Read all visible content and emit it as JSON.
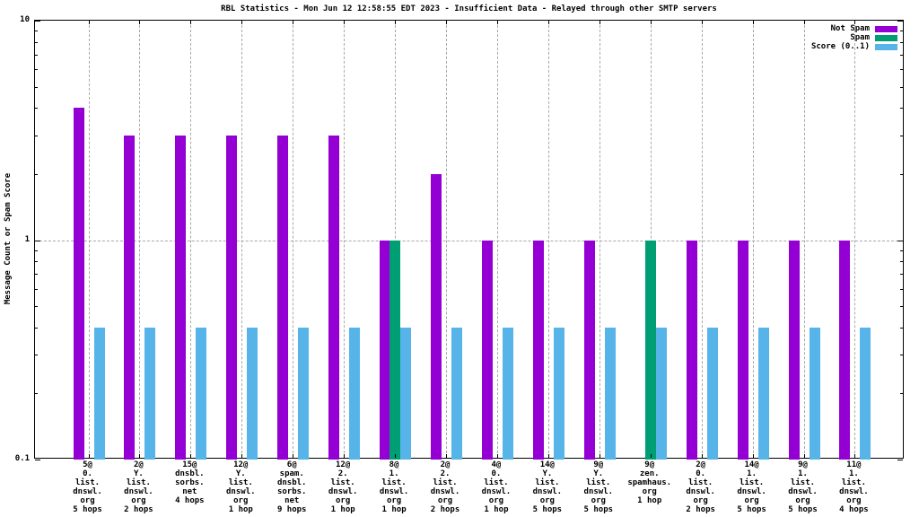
{
  "chart_data": {
    "type": "bar",
    "title": "RBL Statistics - Mon Jun 12 12:58:55 EDT 2023 - Insufficient Data - Relayed through other SMTP servers",
    "ylabel": "Message Count or Spam Score",
    "xlabel": "",
    "yscale": "log",
    "ylim": [
      0.1,
      10
    ],
    "yticks": [
      0.1,
      1,
      10
    ],
    "ytick_labels": [
      "0.1",
      "1",
      "10"
    ],
    "grid": "vertical dashed gridline per category, horizontal dashed line at y=1",
    "legend_position": "top-right-inside",
    "categories": [
      [
        "5@",
        "0.",
        "list.",
        "dnswl.",
        "org",
        "5 hops"
      ],
      [
        "2@",
        "Y.",
        "list.",
        "dnswl.",
        "org",
        "2 hops"
      ],
      [
        "15@",
        "dnsbl.",
        "sorbs.",
        "net",
        "4 hops"
      ],
      [
        "12@",
        "Y.",
        "list.",
        "dnswl.",
        "org",
        "1 hop"
      ],
      [
        "6@",
        "spam.",
        "dnsbl.",
        "sorbs.",
        "net",
        "9 hops"
      ],
      [
        "12@",
        "2.",
        "list.",
        "dnswl.",
        "org",
        "1 hop"
      ],
      [
        "8@",
        "1.",
        "list.",
        "dnswl.",
        "org",
        "1 hop"
      ],
      [
        "2@",
        "2.",
        "list.",
        "dnswl.",
        "org",
        "2 hops"
      ],
      [
        "4@",
        "0.",
        "list.",
        "dnswl.",
        "org",
        "1 hop"
      ],
      [
        "14@",
        "Y.",
        "list.",
        "dnswl.",
        "org",
        "5 hops"
      ],
      [
        "9@",
        "Y.",
        "list.",
        "dnswl.",
        "org",
        "5 hops"
      ],
      [
        "9@",
        "zen.",
        "spamhaus.",
        "org",
        "1 hop"
      ],
      [
        "2@",
        "0.",
        "list.",
        "dnswl.",
        "org",
        "2 hops"
      ],
      [
        "14@",
        "1.",
        "list.",
        "dnswl.",
        "org",
        "5 hops"
      ],
      [
        "9@",
        "1.",
        "list.",
        "dnswl.",
        "org",
        "5 hops"
      ],
      [
        "11@",
        "1.",
        "list.",
        "dnswl.",
        "org",
        "4 hops"
      ]
    ],
    "series": [
      {
        "name": "Not Spam",
        "color": "#9400d3",
        "values": [
          4,
          3,
          3,
          3,
          3,
          3,
          1,
          2,
          1,
          1,
          1,
          0,
          1,
          1,
          1,
          1
        ]
      },
      {
        "name": "Spam",
        "color": "#009e73",
        "values": [
          0,
          0,
          0,
          0,
          0,
          0,
          1,
          0,
          0,
          0,
          0,
          1,
          0,
          0,
          0,
          0
        ]
      },
      {
        "name": "Score (0..1)",
        "color": "#56b4e9",
        "values": [
          0.4,
          0.4,
          0.4,
          0.4,
          0.4,
          0.4,
          0.4,
          0.4,
          0.4,
          0.4,
          0.4,
          0.4,
          0.4,
          0.4,
          0.4,
          0.4
        ]
      }
    ]
  }
}
